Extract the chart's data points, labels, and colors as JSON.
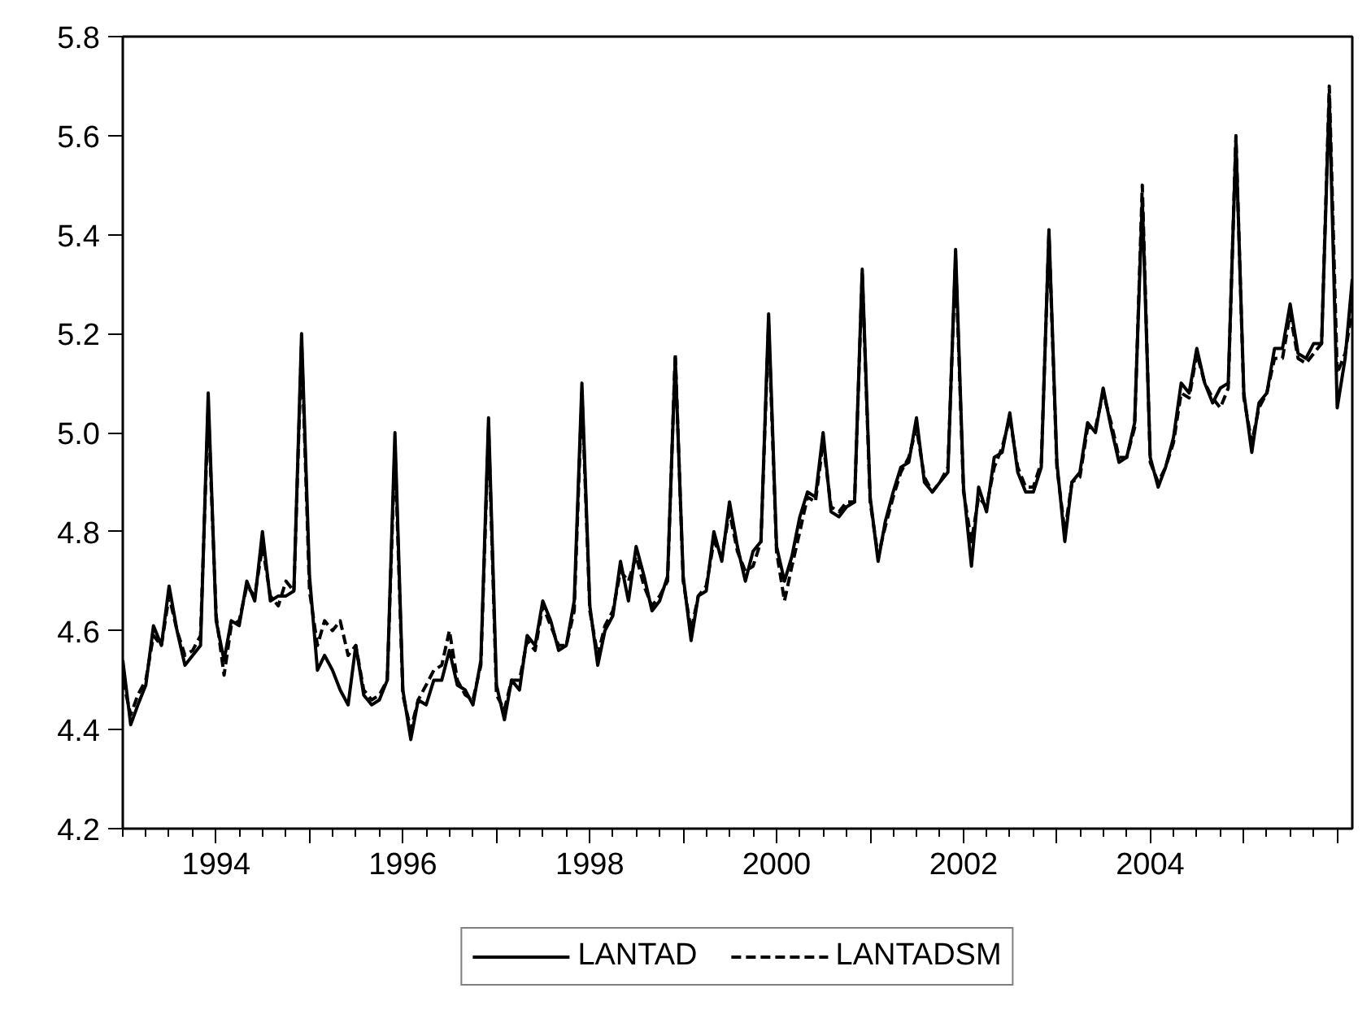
{
  "chart_data": {
    "type": "line",
    "x": [
      "1993-01",
      "1993-02",
      "1993-03",
      "1993-04",
      "1993-05",
      "1993-06",
      "1993-07",
      "1993-08",
      "1993-09",
      "1993-10",
      "1993-11",
      "1993-12",
      "1994-01",
      "1994-02",
      "1994-03",
      "1994-04",
      "1994-05",
      "1994-06",
      "1994-07",
      "1994-08",
      "1994-09",
      "1994-10",
      "1994-11",
      "1994-12",
      "1995-01",
      "1995-02",
      "1995-03",
      "1995-04",
      "1995-05",
      "1995-06",
      "1995-07",
      "1995-08",
      "1995-09",
      "1995-10",
      "1995-11",
      "1995-12",
      "1996-01",
      "1996-02",
      "1996-03",
      "1996-04",
      "1996-05",
      "1996-06",
      "1996-07",
      "1996-08",
      "1996-09",
      "1996-10",
      "1996-11",
      "1996-12",
      "1997-01",
      "1997-02",
      "1997-03",
      "1997-04",
      "1997-05",
      "1997-06",
      "1997-07",
      "1997-08",
      "1997-09",
      "1997-10",
      "1997-11",
      "1997-12",
      "1998-01",
      "1998-02",
      "1998-03",
      "1998-04",
      "1998-05",
      "1998-06",
      "1998-07",
      "1998-08",
      "1998-09",
      "1998-10",
      "1998-11",
      "1998-12",
      "1999-01",
      "1999-02",
      "1999-03",
      "1999-04",
      "1999-05",
      "1999-06",
      "1999-07",
      "1999-08",
      "1999-09",
      "1999-10",
      "1999-11",
      "1999-12",
      "2000-01",
      "2000-02",
      "2000-03",
      "2000-04",
      "2000-05",
      "2000-06",
      "2000-07",
      "2000-08",
      "2000-09",
      "2000-10",
      "2000-11",
      "2000-12",
      "2001-01",
      "2001-02",
      "2001-03",
      "2001-04",
      "2001-05",
      "2001-06",
      "2001-07",
      "2001-08",
      "2001-09",
      "2001-10",
      "2001-11",
      "2001-12",
      "2002-01",
      "2002-02",
      "2002-03",
      "2002-04",
      "2002-05",
      "2002-06",
      "2002-07",
      "2002-08",
      "2002-09",
      "2002-10",
      "2002-11",
      "2002-12",
      "2003-01",
      "2003-02",
      "2003-03",
      "2003-04",
      "2003-05",
      "2003-06",
      "2003-07",
      "2003-08",
      "2003-09",
      "2003-10",
      "2003-11",
      "2003-12",
      "2004-01",
      "2004-02",
      "2004-03",
      "2004-04",
      "2004-05",
      "2004-06",
      "2004-07",
      "2004-08",
      "2004-09",
      "2004-10",
      "2004-11",
      "2004-12",
      "2005-01",
      "2005-02",
      "2005-03",
      "2005-04",
      "2005-05",
      "2005-06",
      "2005-07",
      "2005-08",
      "2005-09",
      "2005-10",
      "2005-11",
      "2005-12",
      "2006-01",
      "2006-02",
      "2006-03"
    ],
    "series": [
      {
        "name": "LANTAD",
        "color": "#000000",
        "line_style": "solid",
        "values": [
          4.54,
          4.41,
          4.45,
          4.49,
          4.61,
          4.57,
          4.69,
          4.6,
          4.53,
          4.55,
          4.57,
          5.08,
          4.62,
          4.54,
          4.62,
          4.61,
          4.7,
          4.66,
          4.8,
          4.66,
          4.67,
          4.67,
          4.68,
          5.2,
          4.71,
          4.52,
          4.55,
          4.52,
          4.48,
          4.45,
          4.57,
          4.47,
          4.45,
          4.46,
          4.5,
          5.0,
          4.48,
          4.38,
          4.46,
          4.45,
          4.5,
          4.5,
          4.56,
          4.49,
          4.48,
          4.45,
          4.54,
          5.03,
          4.49,
          4.42,
          4.5,
          4.48,
          4.59,
          4.57,
          4.66,
          4.62,
          4.56,
          4.57,
          4.66,
          5.1,
          4.65,
          4.53,
          4.6,
          4.63,
          4.74,
          4.66,
          4.77,
          4.71,
          4.64,
          4.66,
          4.71,
          5.15,
          4.71,
          4.58,
          4.67,
          4.68,
          4.8,
          4.74,
          4.86,
          4.77,
          4.7,
          4.76,
          4.78,
          5.24,
          4.77,
          4.7,
          4.75,
          4.83,
          4.88,
          4.87,
          5.0,
          4.84,
          4.83,
          4.85,
          4.86,
          5.33,
          4.87,
          4.74,
          4.82,
          4.88,
          4.93,
          4.94,
          5.03,
          4.9,
          4.88,
          4.9,
          4.92,
          5.37,
          4.89,
          4.73,
          4.89,
          4.84,
          4.95,
          4.96,
          5.04,
          4.92,
          4.88,
          4.88,
          4.93,
          5.41,
          4.94,
          4.78,
          4.9,
          4.92,
          5.02,
          5.0,
          5.09,
          5.01,
          4.94,
          4.95,
          5.02,
          5.47,
          4.95,
          4.89,
          4.93,
          4.99,
          5.1,
          5.08,
          5.17,
          5.1,
          5.06,
          5.09,
          5.1,
          5.59,
          5.08,
          4.96,
          5.06,
          5.08,
          5.17,
          5.17,
          5.26,
          5.16,
          5.15,
          5.18,
          5.18,
          5.68,
          5.05,
          5.15,
          5.31
        ]
      },
      {
        "name": "LANTADSM",
        "color": "#000000",
        "line_style": "dashed",
        "values": [
          4.5,
          4.43,
          4.47,
          4.5,
          4.59,
          4.57,
          4.67,
          4.6,
          4.55,
          4.56,
          4.59,
          5.05,
          4.63,
          4.51,
          4.61,
          4.62,
          4.69,
          4.67,
          4.77,
          4.67,
          4.65,
          4.7,
          4.68,
          5.18,
          4.68,
          4.57,
          4.62,
          4.6,
          4.62,
          4.55,
          4.57,
          4.48,
          4.46,
          4.47,
          4.5,
          4.97,
          4.47,
          4.4,
          4.46,
          4.49,
          4.52,
          4.53,
          4.6,
          4.5,
          4.47,
          4.46,
          4.53,
          5.01,
          4.47,
          4.44,
          4.5,
          4.5,
          4.58,
          4.56,
          4.65,
          4.61,
          4.57,
          4.57,
          4.64,
          5.08,
          4.64,
          4.55,
          4.61,
          4.64,
          4.72,
          4.7,
          4.75,
          4.69,
          4.65,
          4.67,
          4.7,
          5.16,
          4.7,
          4.6,
          4.67,
          4.69,
          4.78,
          4.75,
          4.84,
          4.76,
          4.72,
          4.73,
          4.78,
          5.22,
          4.76,
          4.66,
          4.73,
          4.8,
          4.87,
          4.86,
          4.98,
          4.85,
          4.84,
          4.86,
          4.86,
          5.32,
          4.86,
          4.75,
          4.81,
          4.87,
          4.92,
          4.95,
          5.01,
          4.91,
          4.88,
          4.9,
          4.93,
          5.35,
          4.88,
          4.78,
          4.87,
          4.85,
          4.93,
          4.97,
          5.03,
          4.93,
          4.89,
          4.89,
          4.94,
          5.4,
          4.93,
          4.8,
          4.9,
          4.91,
          5.01,
          5.01,
          5.08,
          5.02,
          4.95,
          4.95,
          5.01,
          5.5,
          4.94,
          4.9,
          4.93,
          4.98,
          5.08,
          5.07,
          5.16,
          5.1,
          5.07,
          5.05,
          5.09,
          5.6,
          5.07,
          4.98,
          5.05,
          5.08,
          5.15,
          5.15,
          5.24,
          5.15,
          5.14,
          5.16,
          5.18,
          5.7,
          5.12,
          5.16,
          5.25
        ]
      }
    ],
    "xlim": [
      "1993-01",
      "2006-03"
    ],
    "xticks": [
      {
        "value": "1994-01",
        "label": "1994"
      },
      {
        "value": "1995-01",
        "label": null
      },
      {
        "value": "1996-01",
        "label": "1996"
      },
      {
        "value": "1997-01",
        "label": null
      },
      {
        "value": "1998-01",
        "label": "1998"
      },
      {
        "value": "1999-01",
        "label": null
      },
      {
        "value": "2000-01",
        "label": "2000"
      },
      {
        "value": "2001-01",
        "label": null
      },
      {
        "value": "2002-01",
        "label": "2002"
      },
      {
        "value": "2003-01",
        "label": null
      },
      {
        "value": "2004-01",
        "label": "2004"
      },
      {
        "value": "2005-01",
        "label": null
      },
      {
        "value": "2006-01",
        "label": null
      }
    ],
    "ylim": [
      4.2,
      5.8
    ],
    "yticks": [
      4.2,
      4.4,
      4.6,
      4.8,
      {
        "value": 5,
        "label": "5.0"
      },
      5.2,
      5.4,
      5.6,
      5.8
    ],
    "grid": false,
    "legend": "bottom"
  }
}
